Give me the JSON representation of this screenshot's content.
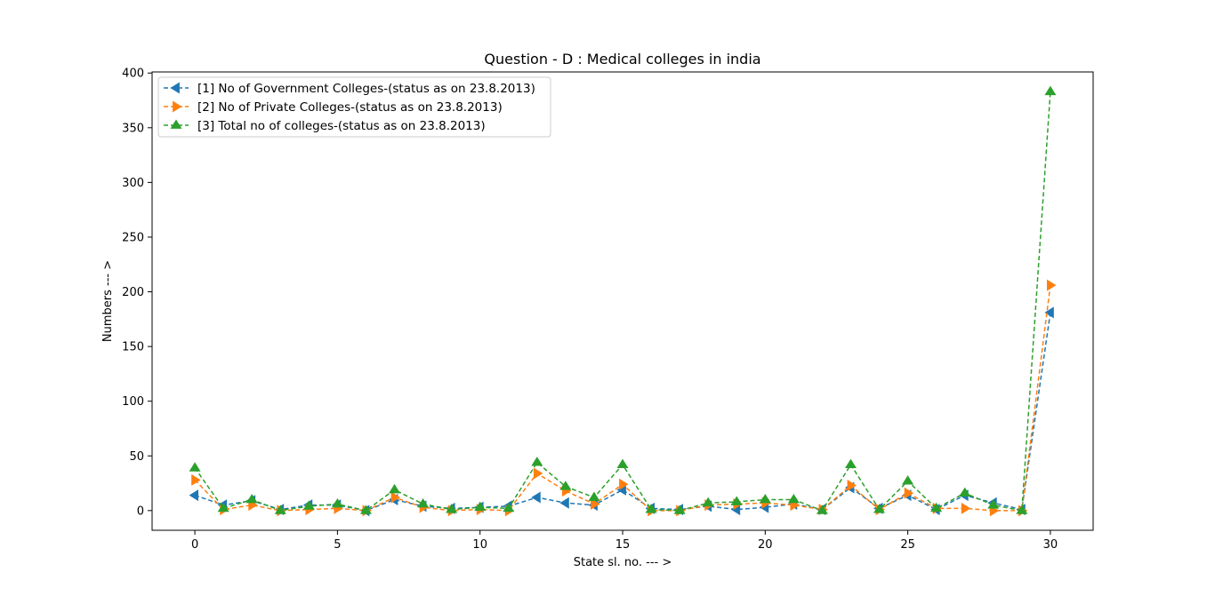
{
  "chart_data": {
    "type": "line",
    "title": "Question - D : Medical colleges in india",
    "xlabel": "State sl. no. --- >",
    "ylabel": "Numbers --- >",
    "xlim": [
      -1.5,
      31.5
    ],
    "ylim": [
      -18,
      401
    ],
    "xticks": [
      0,
      5,
      10,
      15,
      20,
      25,
      30
    ],
    "yticks": [
      0,
      50,
      100,
      150,
      200,
      250,
      300,
      350,
      400
    ],
    "legend_position": "upper-left",
    "grid": false,
    "series": [
      {
        "name": "[1] No of Government Colleges-(status as on 23.8.2013)",
        "color": "#1f77b4",
        "marker": "triangle-left",
        "x": [
          0,
          1,
          2,
          3,
          4,
          5,
          6,
          7,
          8,
          9,
          10,
          11,
          12,
          13,
          14,
          15,
          16,
          17,
          18,
          19,
          20,
          21,
          22,
          23,
          24,
          25,
          26,
          27,
          28,
          29,
          30
        ],
        "values": [
          14,
          5,
          9,
          1,
          5,
          5,
          0,
          10,
          4,
          2,
          3,
          4,
          12,
          7,
          5,
          19,
          2,
          1,
          4,
          1,
          3,
          6,
          1,
          21,
          2,
          14,
          1,
          14,
          7,
          1,
          181
        ]
      },
      {
        "name": "[2] No of Private Colleges-(status as on 23.8.2013)",
        "color": "#ff7f0e",
        "marker": "triangle-right",
        "x": [
          0,
          1,
          2,
          3,
          4,
          5,
          6,
          7,
          8,
          9,
          10,
          11,
          12,
          13,
          14,
          15,
          16,
          17,
          18,
          19,
          20,
          21,
          22,
          23,
          24,
          25,
          26,
          27,
          28,
          29,
          30
        ],
        "values": [
          28,
          1,
          5,
          0,
          1,
          2,
          0,
          12,
          3,
          0,
          1,
          0,
          34,
          18,
          6,
          24,
          0,
          0,
          5,
          6,
          7,
          5,
          1,
          23,
          1,
          16,
          2,
          2,
          0,
          0,
          206
        ]
      },
      {
        "name": "[3] Total no of colleges-(status as on 23.8.2013)",
        "color": "#2ca02c",
        "marker": "triangle-up",
        "x": [
          0,
          1,
          2,
          3,
          4,
          5,
          6,
          7,
          8,
          9,
          10,
          11,
          12,
          13,
          14,
          15,
          16,
          17,
          18,
          19,
          20,
          21,
          22,
          23,
          24,
          25,
          26,
          27,
          28,
          29,
          30
        ],
        "values": [
          39,
          2,
          10,
          0,
          4,
          6,
          0,
          19,
          6,
          1,
          3,
          2,
          44,
          22,
          12,
          42,
          1,
          0,
          7,
          8,
          10,
          10,
          0,
          42,
          1,
          27,
          2,
          16,
          5,
          0,
          383
        ]
      }
    ]
  }
}
